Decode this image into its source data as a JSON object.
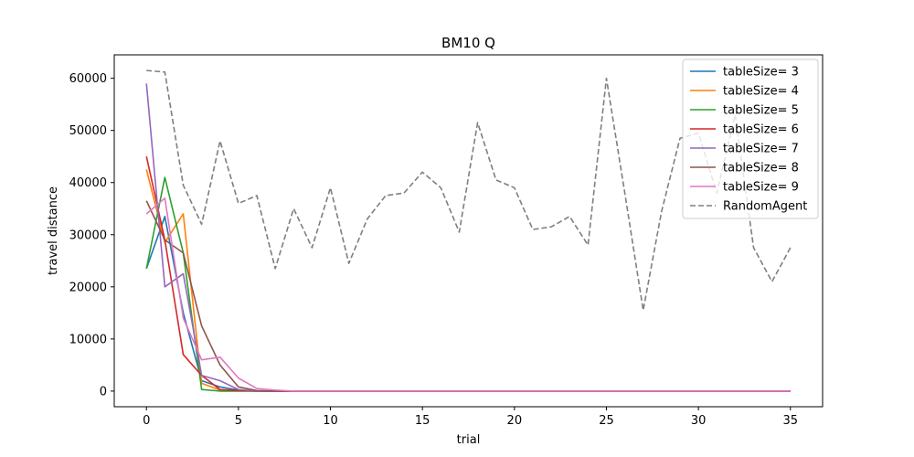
{
  "chart_data": {
    "type": "line",
    "title": "BM10  Q",
    "xlabel": "trial",
    "ylabel": "travel distance",
    "xlim": [
      -1.75,
      36.75
    ],
    "ylim": [
      -3000,
      64500
    ],
    "xticks": [
      0,
      5,
      10,
      15,
      20,
      25,
      30,
      35
    ],
    "yticks": [
      0,
      10000,
      20000,
      30000,
      40000,
      50000,
      60000
    ],
    "grid": false,
    "legend_position": "top-right",
    "x": [
      0,
      1,
      2,
      3,
      4,
      5,
      6,
      7,
      8,
      9,
      10,
      11,
      12,
      13,
      14,
      15,
      16,
      17,
      18,
      19,
      20,
      21,
      22,
      23,
      24,
      25,
      26,
      27,
      28,
      29,
      30,
      31,
      32,
      33,
      34,
      35
    ],
    "series": [
      {
        "name": "tableSize= 3",
        "color": "#1f77b4",
        "dash": "solid",
        "values": [
          23500,
          33500,
          15000,
          2000,
          800,
          200,
          0,
          0,
          0,
          0,
          0,
          0,
          0,
          0,
          0,
          0,
          0,
          0,
          0,
          0,
          0,
          0,
          0,
          0,
          0,
          0,
          0,
          0,
          0,
          0,
          0,
          0,
          0,
          0,
          0,
          0
        ]
      },
      {
        "name": "tableSize= 4",
        "color": "#ff7f0e",
        "dash": "solid",
        "values": [
          42500,
          28500,
          34000,
          1500,
          200,
          100,
          0,
          0,
          0,
          0,
          0,
          0,
          0,
          0,
          0,
          0,
          0,
          0,
          0,
          0,
          0,
          0,
          0,
          0,
          0,
          0,
          0,
          0,
          0,
          0,
          0,
          0,
          0,
          0,
          0,
          0
        ]
      },
      {
        "name": "tableSize= 5",
        "color": "#2ca02c",
        "dash": "solid",
        "values": [
          23500,
          41000,
          26500,
          300,
          0,
          0,
          0,
          0,
          0,
          0,
          0,
          0,
          0,
          0,
          0,
          0,
          0,
          0,
          0,
          0,
          0,
          0,
          0,
          0,
          0,
          0,
          0,
          0,
          0,
          0,
          0,
          0,
          0,
          0,
          0,
          0
        ]
      },
      {
        "name": "tableSize= 6",
        "color": "#d62728",
        "dash": "solid",
        "values": [
          45000,
          29000,
          7000,
          3000,
          300,
          100,
          0,
          0,
          0,
          0,
          0,
          0,
          0,
          0,
          0,
          0,
          0,
          0,
          0,
          0,
          0,
          0,
          0,
          0,
          0,
          0,
          0,
          0,
          0,
          0,
          0,
          0,
          0,
          0,
          0,
          0
        ]
      },
      {
        "name": "tableSize= 7",
        "color": "#9467bd",
        "dash": "solid",
        "values": [
          59000,
          20000,
          22500,
          3000,
          2000,
          300,
          0,
          0,
          0,
          0,
          0,
          0,
          0,
          0,
          0,
          0,
          0,
          0,
          0,
          0,
          0,
          0,
          0,
          0,
          0,
          0,
          0,
          0,
          0,
          0,
          0,
          0,
          0,
          0,
          0,
          0
        ]
      },
      {
        "name": "tableSize= 8",
        "color": "#8c564b",
        "dash": "solid",
        "values": [
          36500,
          29000,
          26500,
          12500,
          5000,
          800,
          100,
          0,
          0,
          0,
          0,
          0,
          0,
          0,
          0,
          0,
          0,
          0,
          0,
          0,
          0,
          0,
          0,
          0,
          0,
          0,
          0,
          0,
          0,
          0,
          0,
          0,
          0,
          0,
          0,
          0
        ]
      },
      {
        "name": "tableSize= 9",
        "color": "#e377c2",
        "dash": "solid",
        "values": [
          34000,
          37000,
          14000,
          6000,
          6500,
          2500,
          500,
          200,
          0,
          0,
          0,
          0,
          0,
          0,
          0,
          0,
          0,
          0,
          0,
          0,
          0,
          0,
          0,
          0,
          0,
          0,
          0,
          0,
          0,
          0,
          0,
          0,
          0,
          0,
          0,
          0
        ]
      },
      {
        "name": "RandomAgent",
        "color": "#7f7f7f",
        "dash": "dashed",
        "values": [
          61500,
          61200,
          39500,
          32000,
          48000,
          36000,
          37500,
          23500,
          35000,
          27500,
          39000,
          24500,
          33000,
          37500,
          38000,
          42000,
          39000,
          30500,
          51500,
          40500,
          39000,
          31000,
          31500,
          33500,
          28000,
          60000,
          38000,
          15500,
          34500,
          48500,
          49500,
          38000,
          53000,
          27500,
          21000,
          27500
        ]
      }
    ]
  }
}
